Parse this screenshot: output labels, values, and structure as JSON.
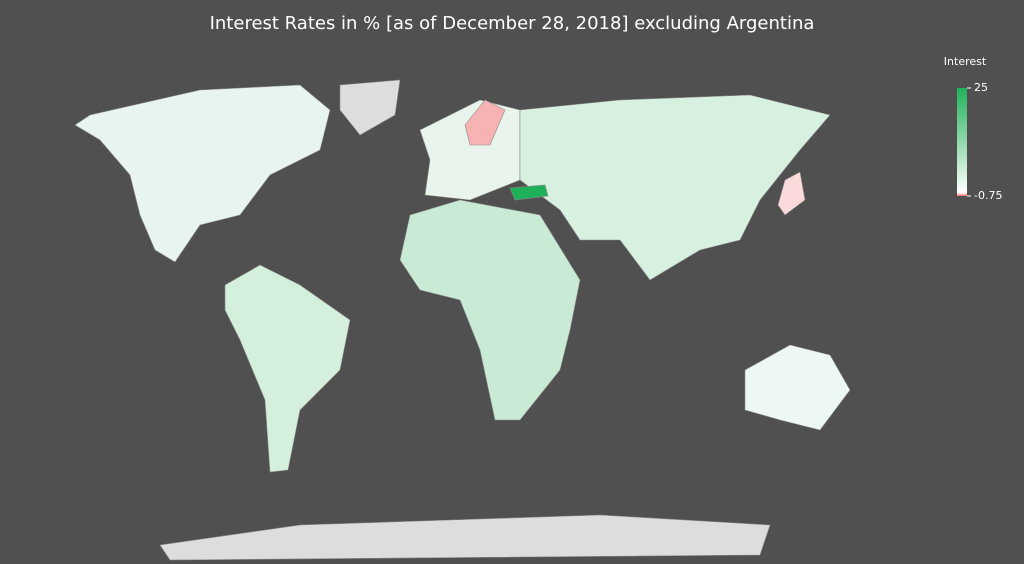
{
  "chart_data": {
    "type": "choropleth",
    "title": "Interest Rates in % [as of December 28, 2018] excluding Argentina",
    "legend_title": "Interest",
    "colorscale": {
      "min": -0.75,
      "max": 25,
      "ticks": [
        25,
        -0.75
      ],
      "colors": [
        "#f8696b",
        "#ffffff",
        "#1fb15a"
      ]
    }
  }
}
